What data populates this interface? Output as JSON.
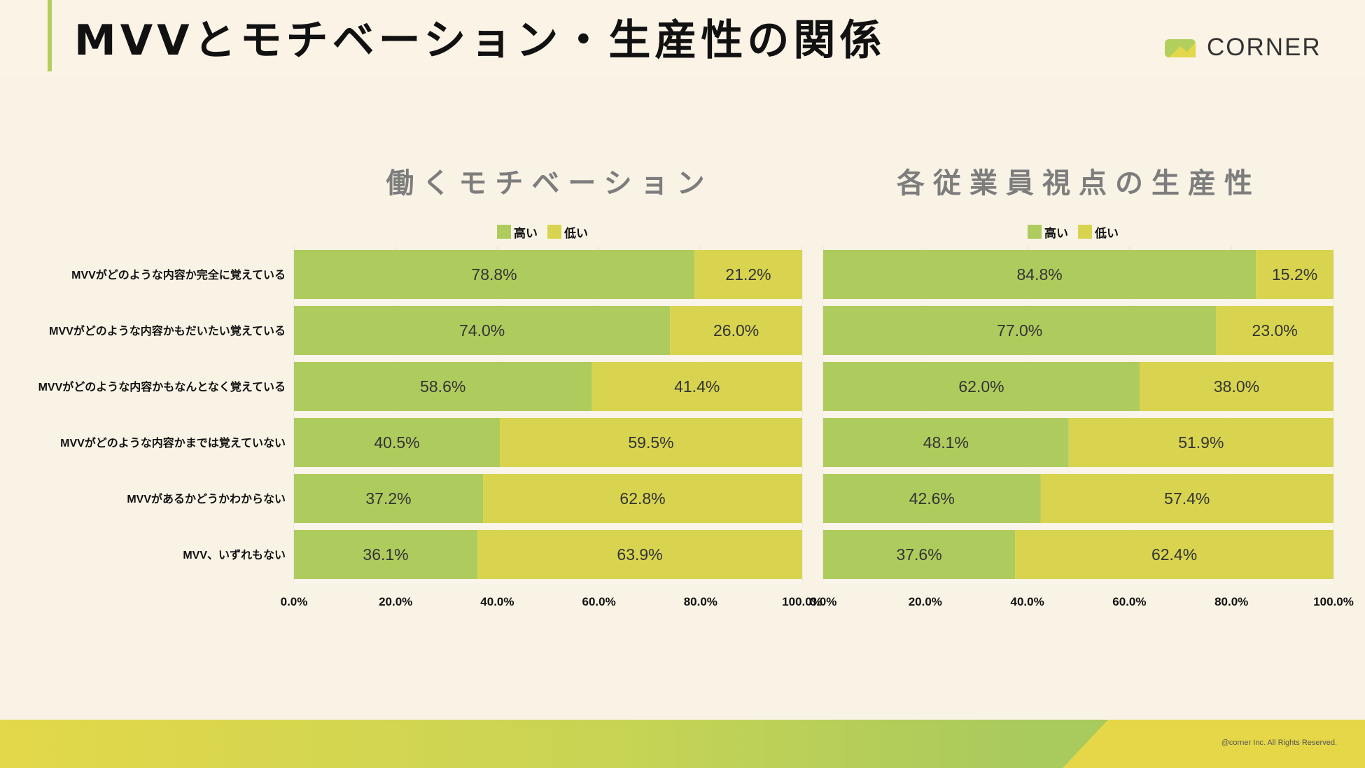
{
  "page": {
    "title": "MVVとモチベーション・生産性の関係"
  },
  "logo": {
    "text": "CORNER"
  },
  "footer": {
    "copyright": "@corner Inc. All Rights Reserved."
  },
  "colors": {
    "high": "#aecb5e",
    "low": "#d8d44f",
    "accent": "#b2cf5d",
    "title_gray": "#7d7d7d"
  },
  "chart_data": [
    {
      "type": "bar",
      "orientation": "horizontal",
      "stacked": true,
      "title": "働くモチベーション",
      "categories": [
        "MVVがどのような内容か完全に覚えている",
        "MVVがどのような内容かもだいたい覚えている",
        "MVVがどのような内容かもなんとなく覚えている",
        "MVVがどのような内容かまでは覚えていない",
        "MVVがあるかどうかわからない",
        "MVV、いずれもない"
      ],
      "series": [
        {
          "name": "高い",
          "values": [
            78.8,
            74.0,
            58.6,
            40.5,
            37.2,
            36.1
          ]
        },
        {
          "name": "低い",
          "values": [
            21.2,
            26.0,
            41.4,
            59.5,
            62.8,
            63.9
          ]
        }
      ],
      "data_labels": [
        [
          "78.8%",
          "74.0%",
          "58.6%",
          "40.5%",
          "37.2%",
          "36.1%"
        ],
        [
          "21.2%",
          "26.0%",
          "41.4%",
          "59.5%",
          "62.8%",
          "63.9%"
        ]
      ],
      "xlim": [
        0,
        100
      ],
      "x_ticks": [
        "0.0%",
        "20.0%",
        "40.0%",
        "60.0%",
        "80.0%",
        "100.0%"
      ],
      "legend": "top",
      "grid": true
    },
    {
      "type": "bar",
      "orientation": "horizontal",
      "stacked": true,
      "title": "各従業員視点の生産性",
      "categories": [
        "MVVがどのような内容か完全に覚えている",
        "MVVがどのような内容かもだいたい覚えている",
        "MVVがどのような内容かもなんとなく覚えている",
        "MVVがどのような内容かまでは覚えていない",
        "MVVがあるかどうかわからない",
        "MVV、いずれもない"
      ],
      "series": [
        {
          "name": "高い",
          "values": [
            84.8,
            77.0,
            62.0,
            48.1,
            42.6,
            37.6
          ]
        },
        {
          "name": "低い",
          "values": [
            15.2,
            23.0,
            38.0,
            51.9,
            57.4,
            62.4
          ]
        }
      ],
      "data_labels": [
        [
          "84.8%",
          "77.0%",
          "62.0%",
          "48.1%",
          "42.6%",
          "37.6%"
        ],
        [
          "15.2%",
          "23.0%",
          "38.0%",
          "51.9%",
          "57.4%",
          "62.4%"
        ]
      ],
      "xlim": [
        0,
        100
      ],
      "x_ticks": [
        "0.0%",
        "20.0%",
        "40.0%",
        "60.0%",
        "80.0%",
        "100.0%"
      ],
      "legend": "top",
      "grid": true
    }
  ]
}
